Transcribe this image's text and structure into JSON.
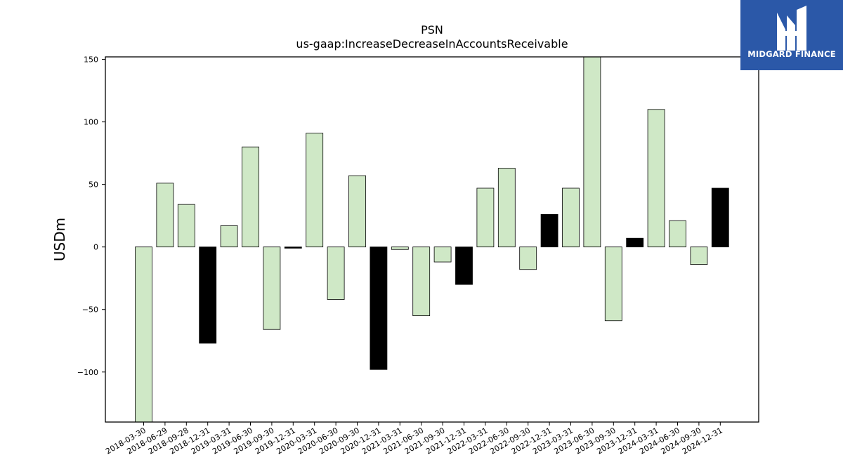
{
  "logo": {
    "text": "MIDGARD FINANCE"
  },
  "colors": {
    "positive_bar": "#cfe8c6",
    "negative_bar": "#000000",
    "bar_edge": "#000000",
    "logo_bg": "#2b58a8"
  },
  "chart_data": {
    "type": "bar",
    "title": "PSN",
    "subtitle": "us-gaap:IncreaseDecreaseInAccountsReceivable",
    "xlabel": "",
    "ylabel": "USDm",
    "ylim": [
      -140,
      152
    ],
    "yticks": [
      -100,
      -50,
      0,
      50,
      100,
      150
    ],
    "ytick_labels": [
      "−100",
      "−50",
      "0",
      "50",
      "100",
      "150"
    ],
    "grid": false,
    "categories": [
      "2018-03-30",
      "2018-06-29",
      "2018-09-28",
      "2018-12-31",
      "2019-03-31",
      "2019-06-30",
      "2019-09-30",
      "2019-12-31",
      "2020-03-31",
      "2020-06-30",
      "2020-09-30",
      "2020-12-31",
      "2021-03-31",
      "2021-06-30",
      "2021-09-30",
      "2021-12-31",
      "2022-03-31",
      "2022-06-30",
      "2022-09-30",
      "2022-12-31",
      "2023-03-31",
      "2023-06-30",
      "2023-09-30",
      "2023-12-31",
      "2024-03-31",
      "2024-06-30",
      "2024-09-30",
      "2024-12-31"
    ],
    "values": [
      -140,
      51,
      34,
      -77,
      17,
      80,
      -66,
      -1,
      91,
      -42,
      57,
      -98,
      -2,
      -55,
      -12,
      -30,
      47,
      63,
      -18,
      26,
      47,
      152,
      -59,
      7,
      110,
      21,
      -14,
      47
    ],
    "highlight": [
      false,
      false,
      false,
      true,
      false,
      false,
      false,
      true,
      false,
      false,
      false,
      true,
      false,
      false,
      false,
      true,
      false,
      false,
      false,
      true,
      false,
      false,
      false,
      true,
      false,
      false,
      false,
      true
    ]
  }
}
